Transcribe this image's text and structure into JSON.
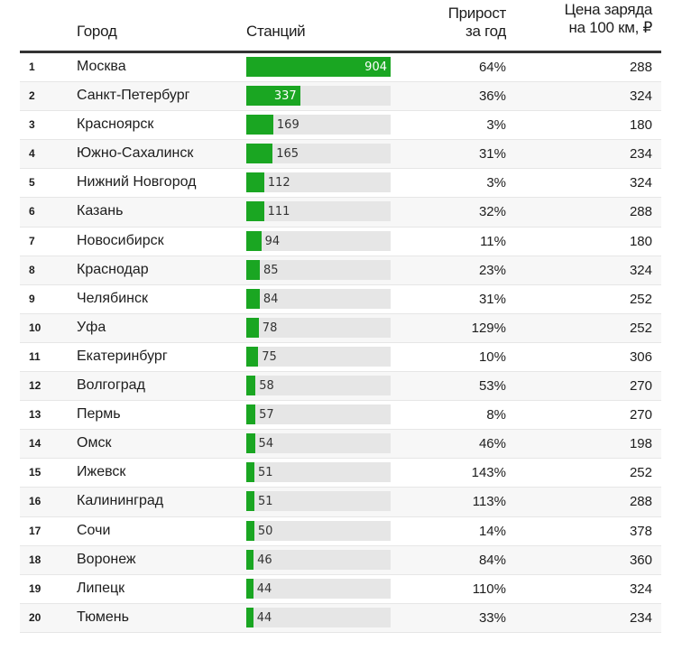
{
  "headers": {
    "city": "Город",
    "stations": "Станций",
    "growth_1": "Прирост",
    "growth_2": "за год",
    "price_1": "Цена заряда",
    "price_2": "на 100 км, ₽"
  },
  "colors": {
    "bar": "#1aa622",
    "track": "#e6e6e6"
  },
  "chart_data": {
    "type": "table",
    "columns": [
      "",
      "Город",
      "Станций",
      "Прирост за год",
      "Цена заряда на 100 км, ₽"
    ],
    "max_stations": 904,
    "rows": [
      {
        "rank": "1",
        "city": "Москва",
        "stations": 904,
        "growth": "64%",
        "price": "288"
      },
      {
        "rank": "2",
        "city": "Санкт-Петербург",
        "stations": 337,
        "growth": "36%",
        "price": "324"
      },
      {
        "rank": "3",
        "city": "Красноярск",
        "stations": 169,
        "growth": "3%",
        "price": "180"
      },
      {
        "rank": "4",
        "city": "Южно-Сахалинск",
        "stations": 165,
        "growth": "31%",
        "price": "234"
      },
      {
        "rank": "5",
        "city": "Нижний Новгород",
        "stations": 112,
        "growth": "3%",
        "price": "324"
      },
      {
        "rank": "6",
        "city": "Казань",
        "stations": 111,
        "growth": "32%",
        "price": "288"
      },
      {
        "rank": "7",
        "city": "Новосибирск",
        "stations": 94,
        "growth": "11%",
        "price": "180"
      },
      {
        "rank": "8",
        "city": "Краснодар",
        "stations": 85,
        "growth": "23%",
        "price": "324"
      },
      {
        "rank": "9",
        "city": "Челябинск",
        "stations": 84,
        "growth": "31%",
        "price": "252"
      },
      {
        "rank": "10",
        "city": "Уфа",
        "stations": 78,
        "growth": "129%",
        "price": "252"
      },
      {
        "rank": "11",
        "city": "Екатеринбург",
        "stations": 75,
        "growth": "10%",
        "price": "306"
      },
      {
        "rank": "12",
        "city": "Волгоград",
        "stations": 58,
        "growth": "53%",
        "price": "270"
      },
      {
        "rank": "13",
        "city": "Пермь",
        "stations": 57,
        "growth": "8%",
        "price": "270"
      },
      {
        "rank": "14",
        "city": "Омск",
        "stations": 54,
        "growth": "46%",
        "price": "198"
      },
      {
        "rank": "15",
        "city": "Ижевск",
        "stations": 51,
        "growth": "143%",
        "price": "252"
      },
      {
        "rank": "16",
        "city": "Калининград",
        "stations": 51,
        "growth": "113%",
        "price": "288"
      },
      {
        "rank": "17",
        "city": "Сочи",
        "stations": 50,
        "growth": "14%",
        "price": "378"
      },
      {
        "rank": "18",
        "city": "Воронеж",
        "stations": 46,
        "growth": "84%",
        "price": "360"
      },
      {
        "rank": "19",
        "city": "Липецк",
        "stations": 44,
        "growth": "110%",
        "price": "324"
      },
      {
        "rank": "20",
        "city": "Тюмень",
        "stations": 44,
        "growth": "33%",
        "price": "234"
      }
    ]
  }
}
